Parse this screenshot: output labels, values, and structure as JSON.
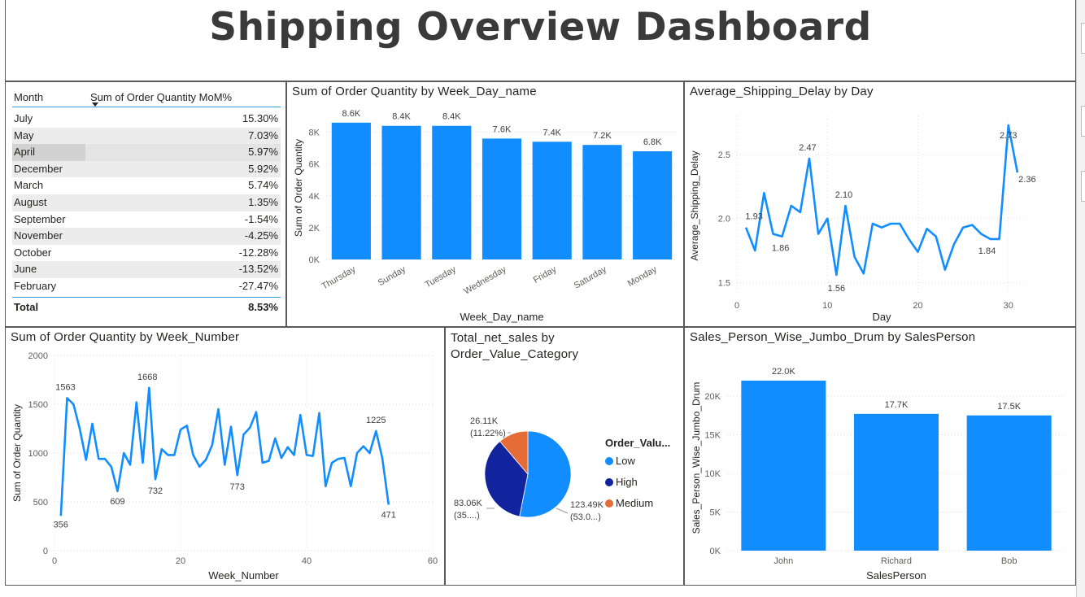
{
  "page_title": "Shipping Overview Dashboard",
  "colors": {
    "primary": "#118DFF",
    "dark_blue": "#12239E",
    "orange": "#E66C37",
    "axis_text": "#605E5C",
    "label_text": "#404040"
  },
  "table": {
    "headers": [
      "Month",
      "Sum of Order Quantity MoM%"
    ],
    "rows": [
      {
        "month": "July",
        "value": "15.30%"
      },
      {
        "month": "May",
        "value": "7.03%"
      },
      {
        "month": "April",
        "value": "5.97%"
      },
      {
        "month": "December",
        "value": "5.92%"
      },
      {
        "month": "March",
        "value": "5.74%"
      },
      {
        "month": "August",
        "value": "1.35%"
      },
      {
        "month": "September",
        "value": "-1.54%"
      },
      {
        "month": "November",
        "value": "-4.25%"
      },
      {
        "month": "October",
        "value": "-12.28%"
      },
      {
        "month": "June",
        "value": "-13.52%"
      },
      {
        "month": "February",
        "value": "-27.47%"
      }
    ],
    "total_label": "Total",
    "total_value": "8.53%"
  },
  "chart_data": [
    {
      "id": "weekday",
      "type": "bar",
      "title": "Sum of Order Quantity by Week_Day_name",
      "xlabel": "Week_Day_name",
      "ylabel": "Sum of Order Quantity",
      "categories": [
        "Thursday",
        "Sunday",
        "Tuesday",
        "Wednesday",
        "Friday",
        "Saturday",
        "Monday"
      ],
      "values": [
        8600,
        8400,
        8400,
        7600,
        7400,
        7200,
        6800
      ],
      "data_labels": [
        "8.6K",
        "8.4K",
        "8.4K",
        "7.6K",
        "7.4K",
        "7.2K",
        "6.8K"
      ],
      "ylim": [
        0,
        9000
      ],
      "yticks": [
        0,
        2000,
        4000,
        6000,
        8000
      ],
      "ytick_labels": [
        "0K",
        "2K",
        "4K",
        "6K",
        "8K"
      ],
      "grid": true
    },
    {
      "id": "delay",
      "type": "line",
      "title": "Average_Shipping_Delay by Day",
      "xlabel": "Day",
      "ylabel": "Average_Shipping_Delay",
      "x": [
        1,
        2,
        3,
        4,
        5,
        6,
        7,
        8,
        9,
        10,
        11,
        12,
        13,
        14,
        15,
        16,
        17,
        18,
        19,
        20,
        21,
        22,
        23,
        24,
        25,
        26,
        27,
        28,
        29,
        30,
        31
      ],
      "y": [
        1.93,
        1.75,
        2.2,
        1.88,
        1.86,
        2.1,
        2.05,
        2.47,
        1.88,
        2.0,
        1.56,
        2.1,
        1.7,
        1.57,
        1.96,
        1.93,
        1.96,
        1.96,
        1.84,
        1.74,
        1.92,
        1.86,
        1.6,
        1.8,
        1.93,
        1.95,
        1.88,
        1.84,
        1.84,
        2.73,
        2.36
      ],
      "point_labels": [
        {
          "x": 1,
          "text": "1.93"
        },
        {
          "x": 5,
          "text": "1.86"
        },
        {
          "x": 8,
          "text": "2.47"
        },
        {
          "x": 11,
          "text": "1.56"
        },
        {
          "x": 12,
          "text": "2.10"
        },
        {
          "x": 28,
          "text": "1.84"
        },
        {
          "x": 30,
          "text": "2.73"
        },
        {
          "x": 31,
          "text": "2.36"
        }
      ],
      "xlim": [
        0,
        32
      ],
      "ylim": [
        1.4,
        2.8
      ],
      "xticks": [
        0,
        10,
        20,
        30
      ],
      "yticks": [
        1.5,
        2.0,
        2.5
      ],
      "ytick_labels": [
        "1.5",
        "2.0",
        "2.5"
      ],
      "grid": true
    },
    {
      "id": "week",
      "type": "line",
      "title": "Sum of Order Quantity by Week_Number",
      "xlabel": "Week_Number",
      "ylabel": "Sum of Order Quantity",
      "x": [
        1,
        2,
        3,
        4,
        5,
        6,
        7,
        8,
        9,
        10,
        11,
        12,
        13,
        14,
        15,
        16,
        17,
        18,
        19,
        20,
        21,
        22,
        23,
        24,
        25,
        26,
        27,
        28,
        29,
        30,
        31,
        32,
        33,
        34,
        35,
        36,
        37,
        38,
        39,
        40,
        41,
        42,
        43,
        44,
        45,
        46,
        47,
        48,
        49,
        50,
        51,
        52,
        53
      ],
      "y": [
        356,
        1563,
        1500,
        1250,
        930,
        1300,
        940,
        940,
        860,
        609,
        1000,
        880,
        1520,
        900,
        1668,
        732,
        1040,
        980,
        980,
        1240,
        1280,
        980,
        860,
        930,
        1080,
        1450,
        880,
        1270,
        773,
        1190,
        1260,
        1420,
        900,
        920,
        1150,
        950,
        1060,
        980,
        1390,
        980,
        970,
        1410,
        660,
        900,
        940,
        950,
        660,
        1000,
        1070,
        1000,
        1225,
        950,
        471
      ],
      "point_labels": [
        {
          "x": 1,
          "text": "356"
        },
        {
          "x": 2,
          "text": "1563"
        },
        {
          "x": 10,
          "text": "609"
        },
        {
          "x": 15,
          "text": "1668"
        },
        {
          "x": 16,
          "text": "732"
        },
        {
          "x": 29,
          "text": "773"
        },
        {
          "x": 51,
          "text": "1225"
        },
        {
          "x": 53,
          "text": "471"
        }
      ],
      "xlim": [
        0,
        60
      ],
      "ylim": [
        0,
        2000
      ],
      "xticks": [
        0,
        20,
        40,
        60
      ],
      "yticks": [
        0,
        500,
        1000,
        1500,
        2000
      ],
      "ytick_labels": [
        "0",
        "500",
        "1000",
        "1500",
        "2000"
      ],
      "grid": true
    },
    {
      "id": "pie",
      "type": "pie",
      "title": "Total_net_sales by Order_Value_Category",
      "legend_title": "Order_Valu...",
      "legend_position": "right",
      "slices": [
        {
          "name": "Low",
          "value": 123.49,
          "label_line1": "123.49K",
          "label_line2": "(53.0...)",
          "color": "#118DFF"
        },
        {
          "name": "High",
          "value": 83.06,
          "label_line1": "83.06K",
          "label_line2": "(35....)",
          "color": "#12239E"
        },
        {
          "name": "Medium",
          "value": 26.11,
          "label_line1": "26.11K",
          "label_line2": "(11.22%)",
          "color": "#E66C37"
        }
      ]
    },
    {
      "id": "sales",
      "type": "bar",
      "title": "Sales_Person_Wise_Jumbo_Drum by SalesPerson",
      "xlabel": "SalesPerson",
      "ylabel": "Sales_Person_Wise_Jumbo_Drum",
      "categories": [
        "John",
        "Richard",
        "Bob"
      ],
      "values": [
        22000,
        17700,
        17500
      ],
      "data_labels": [
        "22.0K",
        "17.7K",
        "17.5K"
      ],
      "ylim": [
        0,
        24000
      ],
      "yticks": [
        0,
        5000,
        10000,
        15000,
        20000
      ],
      "ytick_labels": [
        "0K",
        "5K",
        "10K",
        "15K",
        "20K"
      ],
      "grid": true
    }
  ]
}
